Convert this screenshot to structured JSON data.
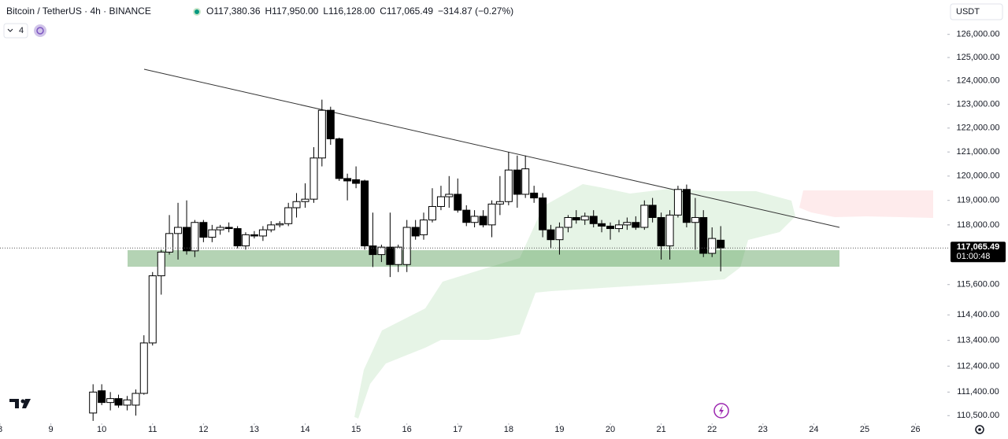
{
  "chart_data": {
    "type": "candlestick",
    "title": "Bitcoin / TetherUS · 4h · BINANCE",
    "ohlc_labels": [
      "O117,380.36",
      "H117,950.00",
      "L116,128.00",
      "C117,065.49"
    ],
    "change_label": "−314.87 (−0.27%)",
    "indicator_count": "4",
    "currency": "USDT",
    "price_label": "117,065.49",
    "countdown": "01:00:48",
    "log_scale": true,
    "grid": false,
    "up_color": "#ffffff",
    "down_color": "#000000",
    "xlim": [
      8,
      26.58
    ],
    "xticks": [
      8,
      9,
      10,
      11,
      12,
      13,
      14,
      15,
      16,
      17,
      18,
      19,
      20,
      21,
      22,
      23,
      24,
      25,
      26
    ],
    "ylim": [
      127500,
      110150
    ],
    "yticks": [
      {
        "value": 126000,
        "label": "126,000.00"
      },
      {
        "value": 125000,
        "label": "125,000.00"
      },
      {
        "value": 124000,
        "label": "124,000.00"
      },
      {
        "value": 123000,
        "label": "123,000.00"
      },
      {
        "value": 122000,
        "label": "122,000.00"
      },
      {
        "value": 121000,
        "label": "121,000.00"
      },
      {
        "value": 120000,
        "label": "120,000.00"
      },
      {
        "value": 119000,
        "label": "119,000.00"
      },
      {
        "value": 118000,
        "label": "118,000.00"
      },
      {
        "value": 115600,
        "label": "115,600.00"
      },
      {
        "value": 114400,
        "label": "114,400.00"
      },
      {
        "value": 113400,
        "label": "113,400.00"
      },
      {
        "value": 112400,
        "label": "112,400.00"
      },
      {
        "value": 111400,
        "label": "111,400.00"
      },
      {
        "value": 110500,
        "label": "110,500.00"
      }
    ],
    "x": [
      9.83,
      10,
      10.17,
      10.33,
      10.5,
      10.67,
      10.83,
      11,
      11.17,
      11.33,
      11.5,
      11.67,
      11.83,
      12,
      12.17,
      12.33,
      12.5,
      12.67,
      12.83,
      13,
      13.17,
      13.33,
      13.5,
      13.67,
      13.83,
      14,
      14.17,
      14.33,
      14.5,
      14.67,
      14.83,
      15,
      15.17,
      15.33,
      15.5,
      15.67,
      15.83,
      16,
      16.17,
      16.33,
      16.5,
      16.67,
      16.83,
      17,
      17.17,
      17.33,
      17.5,
      17.67,
      17.83,
      18,
      18.17,
      18.33,
      18.5,
      18.67,
      18.83,
      19,
      19.17,
      19.33,
      19.5,
      19.67,
      19.83,
      20,
      20.17,
      20.33,
      20.5,
      20.67,
      20.83,
      21,
      21.17,
      21.33,
      21.5,
      21.67,
      21.83,
      22,
      22.17
    ],
    "open": [
      110600,
      111450,
      111000,
      111150,
      110900,
      110900,
      111350,
      113300,
      115950,
      116900,
      117650,
      117900,
      116950,
      118100,
      117500,
      117800,
      117900,
      117850,
      117150,
      117600,
      117550,
      117800,
      118000,
      118050,
      118700,
      118950,
      119050,
      120750,
      122750,
      121550,
      119900,
      119850,
      119800,
      117150,
      116800,
      117100,
      116400,
      116400,
      117900,
      117600,
      118200,
      118750,
      119150,
      119250,
      118600,
      118100,
      118350,
      118000,
      118850,
      118950,
      120250,
      119250,
      119300,
      119100,
      117800,
      117400,
      117900,
      118300,
      118200,
      118350,
      118050,
      117950,
      117850,
      118000,
      118100,
      117900,
      118800,
      118300,
      117150,
      118400,
      119450,
      118100,
      118300,
      116850,
      117380.36
    ],
    "high": [
      111700,
      111700,
      111400,
      111300,
      111250,
      111500,
      113600,
      116100,
      117000,
      118400,
      118900,
      119000,
      118200,
      118200,
      118000,
      118000,
      118100,
      117950,
      117700,
      117750,
      117950,
      118150,
      118150,
      118900,
      119300,
      119700,
      121200,
      123200,
      122900,
      121600,
      120100,
      120400,
      119850,
      118500,
      117200,
      118500,
      117200,
      118200,
      118200,
      118500,
      119500,
      119600,
      120000,
      119900,
      118800,
      118600,
      118600,
      119000,
      120000,
      121000,
      120850,
      120850,
      119600,
      119300,
      118000,
      118100,
      118400,
      118600,
      118500,
      118600,
      118200,
      118100,
      118200,
      118300,
      118350,
      119000,
      119100,
      118500,
      118600,
      119600,
      119650,
      119100,
      118600,
      117900,
      117950
    ],
    "low": [
      110300,
      110900,
      110700,
      110800,
      110700,
      110500,
      111300,
      113200,
      115200,
      116800,
      116600,
      116800,
      116700,
      117300,
      117300,
      117600,
      117700,
      117050,
      117000,
      117450,
      117350,
      117700,
      117900,
      117950,
      118300,
      118700,
      118900,
      120400,
      121300,
      119800,
      119000,
      119500,
      117000,
      116300,
      116500,
      115900,
      116100,
      116100,
      117400,
      117400,
      118100,
      118600,
      118700,
      118500,
      117950,
      117900,
      117900,
      117500,
      118400,
      118800,
      118700,
      119100,
      118900,
      117500,
      117050,
      116800,
      117700,
      118050,
      118000,
      117900,
      117700,
      117400,
      117700,
      117800,
      117800,
      117800,
      118100,
      116600,
      116600,
      118300,
      117900,
      117000,
      116700,
      116700,
      116128
    ],
    "close": [
      111400,
      111000,
      111150,
      110900,
      111100,
      111350,
      113300,
      115950,
      116900,
      117650,
      117900,
      116950,
      118100,
      117500,
      117800,
      117900,
      117850,
      117150,
      117600,
      117550,
      117800,
      118000,
      118050,
      118700,
      118950,
      119050,
      120750,
      122750,
      121550,
      119900,
      119800,
      119700,
      117150,
      116800,
      117100,
      116400,
      117100,
      117900,
      117550,
      118200,
      118750,
      119150,
      119250,
      118600,
      118100,
      118350,
      118000,
      118850,
      118950,
      120250,
      119250,
      120300,
      119100,
      117800,
      117400,
      117900,
      118300,
      118200,
      118350,
      118050,
      117950,
      117850,
      118000,
      118100,
      117900,
      118800,
      118300,
      117150,
      118400,
      119450,
      118100,
      118300,
      116850,
      117450,
      117065.49
    ]
  }
}
